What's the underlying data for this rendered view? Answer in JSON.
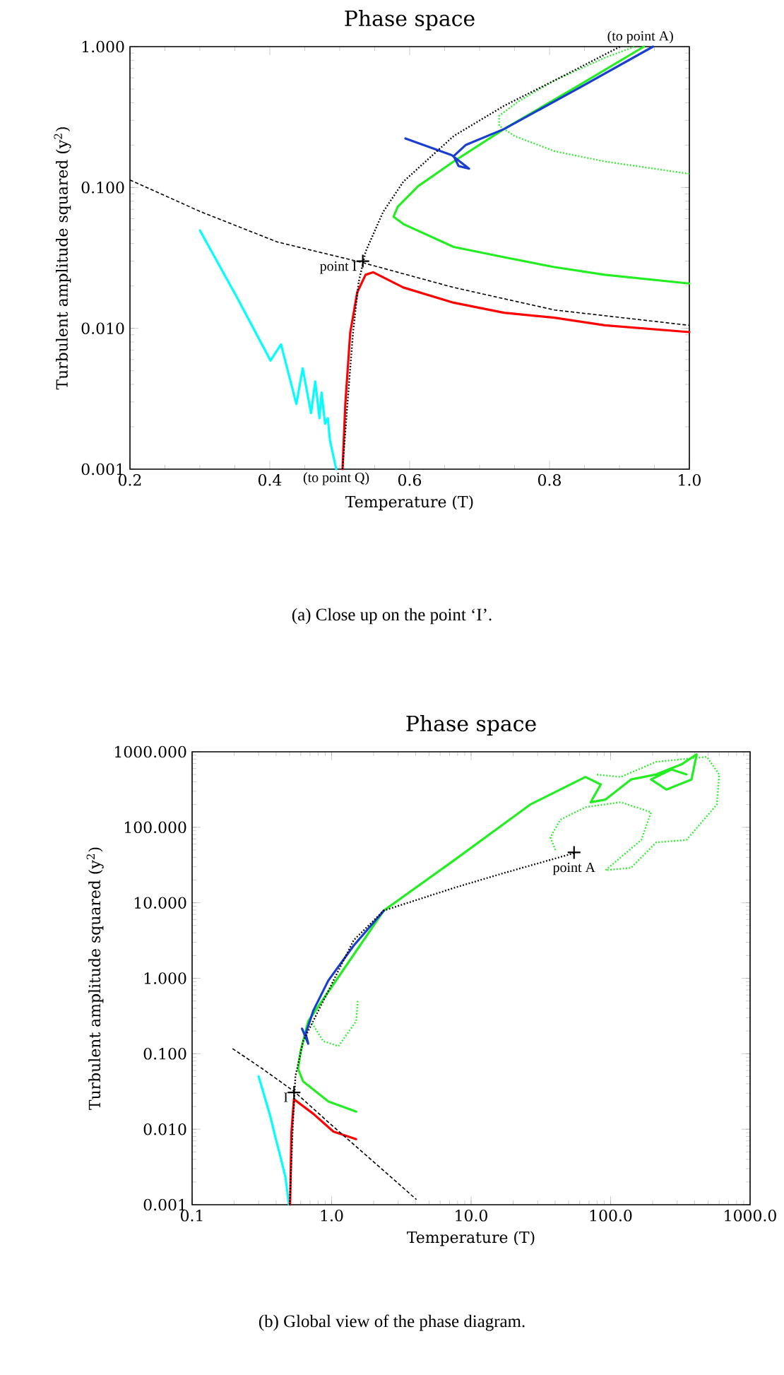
{
  "chart_data": [
    {
      "type": "line",
      "title": "Phase space",
      "xlabel": "Temperature (T)",
      "ylabel": "Turbulent amplitude squared (y$^{2}$)",
      "log": "y",
      "xlim": [
        0.2,
        1.0
      ],
      "ylim": [
        0.001,
        1.0
      ],
      "xticks": [
        0.2,
        0.4,
        0.6,
        0.8,
        {
          "value": 1.0,
          "label": "1.0"
        }
      ],
      "yticks": [
        {
          "value": 0.001,
          "label": "0.001"
        },
        {
          "value": 0.01,
          "label": "0.010"
        },
        {
          "value": 0.1,
          "label": "0.100"
        },
        {
          "value": 1.0,
          "label": "1.000"
        }
      ],
      "series": [
        {
          "color": "#00ffff",
          "line_style": "solid",
          "x": [
            0.3,
            0.353,
            0.401,
            0.416,
            0.438,
            0.447,
            0.459,
            0.465,
            0.471,
            0.474,
            0.479,
            0.483,
            0.486,
            0.495
          ],
          "values": [
            0.0496,
            0.0166,
            0.0059,
            0.0077,
            0.0029,
            0.0052,
            0.0025,
            0.0042,
            0.0023,
            0.0035,
            0.0021,
            0.0023,
            0.0016,
            0.001
          ]
        },
        {
          "color": "#ff0000",
          "line_style": "solid",
          "x": [
            0.504,
            0.508,
            0.515,
            0.525,
            0.537,
            0.548,
            0.591,
            0.663,
            0.735,
            0.807,
            0.879,
            1.0
          ],
          "values": [
            0.001,
            0.0029,
            0.0093,
            0.018,
            0.024,
            0.025,
            0.0195,
            0.0152,
            0.0129,
            0.0119,
            0.0105,
            0.0094
          ]
        },
        {
          "color": "#22ee22",
          "line_style": "solid",
          "x": [
            1.0,
            0.879,
            0.807,
            0.735,
            0.663,
            0.591,
            0.577,
            0.583,
            0.612,
            0.663,
            0.735,
            0.842,
            0.935
          ],
          "values": [
            0.0208,
            0.024,
            0.0272,
            0.032,
            0.0378,
            0.055,
            0.062,
            0.073,
            0.102,
            0.153,
            0.26,
            0.53,
            1.0
          ]
        },
        {
          "color": "#22ee22",
          "line_style": "dotted",
          "x": [
            1.0,
            0.879,
            0.807,
            0.75,
            0.728,
            0.728,
            0.757,
            0.807,
            0.879,
            0.922
          ],
          "values": [
            0.125,
            0.153,
            0.181,
            0.232,
            0.274,
            0.323,
            0.413,
            0.575,
            0.834,
            1.0
          ]
        },
        {
          "color": "#1a3fd0",
          "line_style": "solid",
          "x": [
            0.948,
            0.842,
            0.735,
            0.68,
            0.663,
            0.67,
            0.685,
            0.66,
            0.62,
            0.594
          ],
          "values": [
            1.0,
            0.508,
            0.26,
            0.2,
            0.167,
            0.142,
            0.136,
            0.17,
            0.2,
            0.223
          ]
        },
        {
          "color": "#000000",
          "line_style": "dashed",
          "x": [
            0.2,
            0.302,
            0.411,
            0.53,
            0.663,
            0.807,
            1.0
          ],
          "values": [
            0.113,
            0.067,
            0.041,
            0.0295,
            0.0195,
            0.0135,
            0.0105
          ]
        },
        {
          "color": "#000000",
          "line_style": "dotted",
          "x": [
            0.504,
            0.511,
            0.519,
            0.527,
            0.537,
            0.562,
            0.591,
            0.663,
            0.735,
            0.807,
            0.901
          ],
          "values": [
            0.001,
            0.0029,
            0.0093,
            0.0212,
            0.035,
            0.067,
            0.11,
            0.232,
            0.38,
            0.575,
            1.0
          ]
        },
        {
          "type": "scatter",
          "marker": "cross",
          "color": "#000000",
          "x": [
            0.533
          ],
          "values": [
            0.03
          ]
        }
      ],
      "annotations": [
        "(a) Close up on the point ‘I’.",
        {
          "text": "point I",
          "x": 0.533,
          "y": 0.03
        },
        {
          "text": "(to point Q)",
          "x": 0.495,
          "y": 0.001
        },
        {
          "text": "(to point A)",
          "x": 0.93,
          "y": 1.0
        }
      ]
    },
    {
      "type": "line",
      "title": "Phase space",
      "xlabel": "Temperature (T)",
      "ylabel": "Turbulent amplitude squared (y$^{2}$)",
      "log": "xy",
      "xlim": [
        0.1,
        1000
      ],
      "ylim": [
        0.001,
        1000
      ],
      "xticks": [
        0.1,
        {
          "value": 1,
          "label": "1.0"
        },
        {
          "value": 10,
          "label": "10.0"
        },
        {
          "value": 100,
          "label": "100.0"
        },
        {
          "value": 1000,
          "label": "1000.0"
        }
      ],
      "yticks": [
        {
          "value": 0.001,
          "label": "0.001"
        },
        {
          "value": 0.01,
          "label": "0.010"
        },
        {
          "value": 0.1,
          "label": "0.100"
        },
        {
          "value": 1,
          "label": "1.000"
        },
        {
          "value": 10,
          "label": "10.000"
        },
        {
          "value": 100,
          "label": "100.000"
        },
        {
          "value": 1000,
          "label": "1000.000"
        }
      ],
      "series": [
        {
          "color": "#00ffff",
          "line_style": "solid",
          "x": [
            0.3,
            0.364,
            0.395,
            0.43,
            0.467,
            0.494
          ],
          "values": [
            0.05,
            0.0147,
            0.0079,
            0.0043,
            0.0023,
            0.001
          ]
        },
        {
          "color": "#ff0000",
          "line_style": "solid",
          "x": [
            0.504,
            0.515,
            0.537,
            0.74,
            1.03,
            1.5
          ],
          "values": [
            0.001,
            0.009,
            0.025,
            0.016,
            0.0093,
            0.0074
          ]
        },
        {
          "color": "#22ee22",
          "line_style": "solid",
          "x": [
            1.5,
            0.95,
            0.625,
            0.575,
            0.6,
            0.68,
            2.37,
            7.6,
            26.5,
            66,
            85,
            72,
            92,
            140,
            212,
            322,
            414,
            380,
            251,
            195,
            273,
            350
          ],
          "values": [
            0.0171,
            0.0233,
            0.043,
            0.063,
            0.108,
            0.27,
            7.9,
            36.9,
            200,
            464,
            369,
            215,
            233,
            430,
            501,
            681,
            926,
            430,
            316,
            430,
            584,
            501
          ]
        },
        {
          "color": "#22ee22",
          "line_style": "dotted",
          "x": [
            1.54,
            1.5,
            1.12,
            0.87,
            0.71
          ],
          "values": [
            0.5,
            0.27,
            0.126,
            0.147,
            0.27
          ]
        },
        {
          "color": "#22ee22",
          "line_style": "dotted",
          "x": [
            40.2,
            37,
            43.6,
            66.2,
            118,
            195,
            166,
            92,
            140,
            212,
            350,
            577,
            601,
            489,
            212,
            118,
            78
          ],
          "values": [
            50,
            73.6,
            126,
            185,
            215,
            158,
            68,
            27,
            29,
            63,
            68,
            200,
            501,
            858,
            736,
            464,
            501
          ]
        },
        {
          "color": "#1a3fd0",
          "line_style": "solid",
          "x": [
            2.37,
            1.44,
            0.946,
            0.738,
            0.652,
            0.68,
            0.614
          ],
          "values": [
            7.9,
            2.71,
            0.93,
            0.37,
            0.185,
            0.136,
            0.215
          ]
        },
        {
          "color": "#000000",
          "line_style": "dashed",
          "x": [
            0.195,
            0.32,
            0.54,
            1.03,
            2.0,
            4.06
          ],
          "values": [
            0.117,
            0.063,
            0.0316,
            0.0108,
            0.0037,
            0.00117
          ]
        },
        {
          "color": "#000000",
          "line_style": "dotted",
          "x": [
            0.5,
            0.529,
            0.55,
            0.625,
            1.44,
            2.37,
            7.6,
            17.5,
            56
          ],
          "values": [
            0.001,
            0.0126,
            0.05,
            0.147,
            3.2,
            7.9,
            15.8,
            25,
            46
          ]
        },
        {
          "type": "scatter",
          "marker": "cross",
          "color": "#000000",
          "x": [
            0.538,
            54.7
          ],
          "values": [
            0.0307,
            46.4
          ]
        }
      ],
      "annotations": [
        "(b) Global view of the phase diagram.",
        {
          "text": "I",
          "x": 0.538,
          "y": 0.0307
        },
        {
          "text": "point A",
          "x": 54.7,
          "y": 46.4
        }
      ]
    }
  ]
}
